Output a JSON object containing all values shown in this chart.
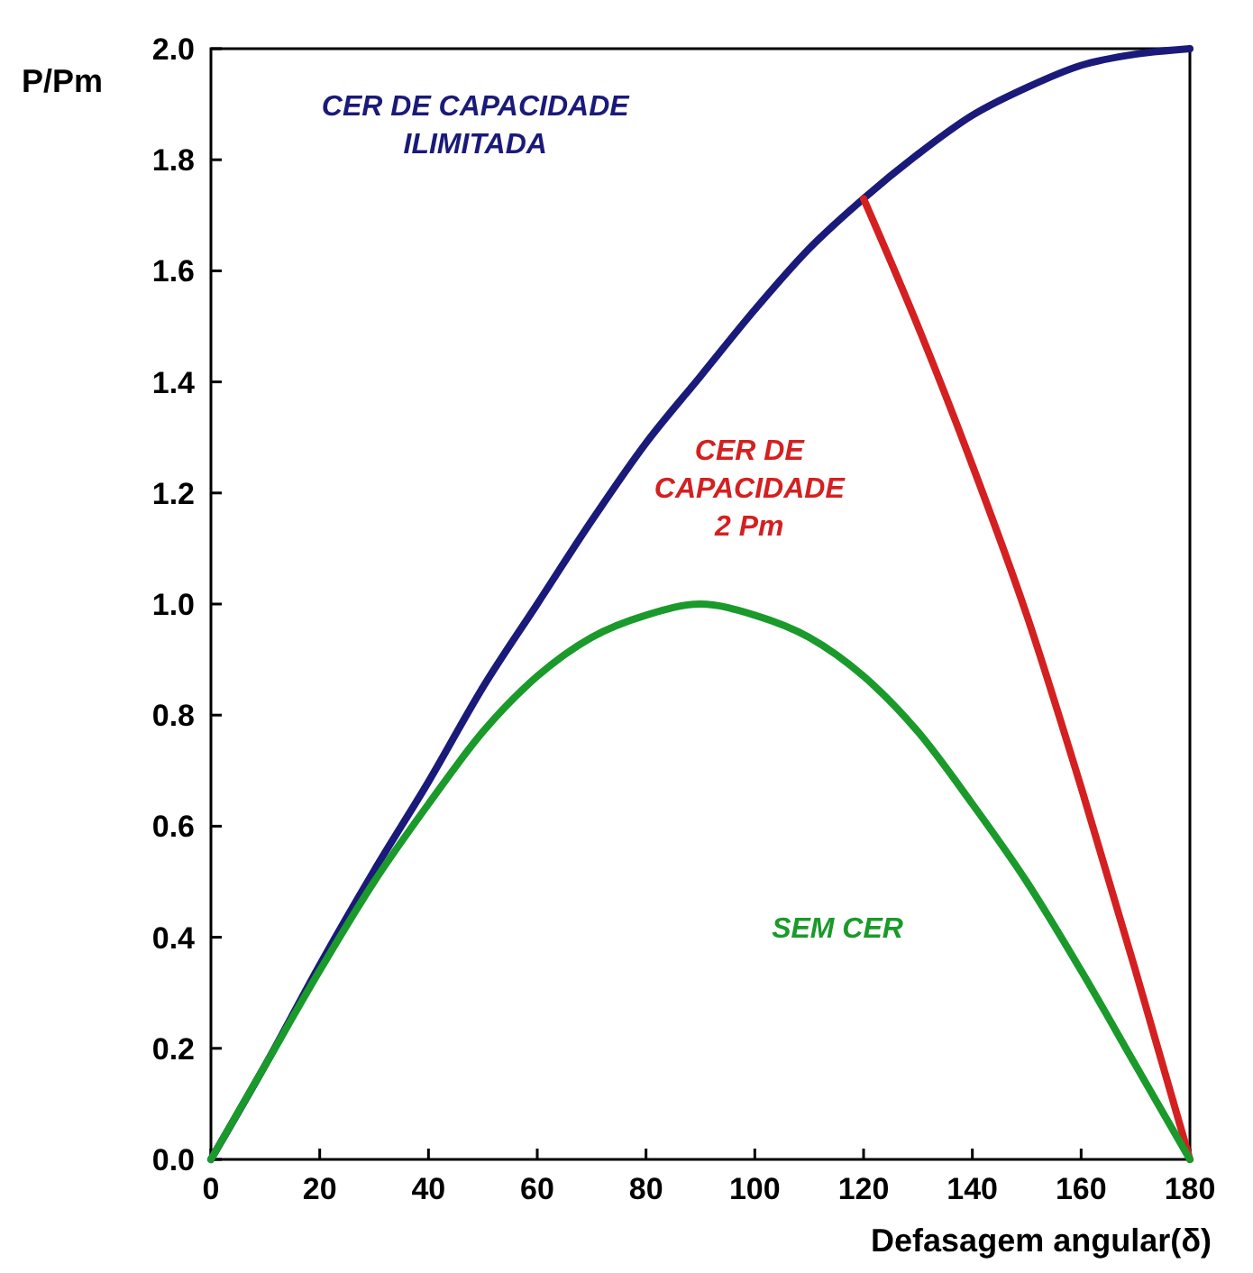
{
  "chart_data": {
    "type": "line",
    "xlabel": "Defasagem angular(δ)",
    "ylabel": "P/Pm",
    "xlim": [
      0,
      180
    ],
    "ylim": [
      0,
      2.0
    ],
    "xticks": [
      0,
      20,
      40,
      60,
      80,
      100,
      120,
      140,
      160,
      180
    ],
    "yticks": [
      {
        "value": 0,
        "label": "0.0"
      },
      0.2,
      0.4,
      0.6,
      0.8,
      {
        "value": 1,
        "label": "1.0"
      },
      1.2,
      1.4,
      1.6,
      1.8,
      {
        "value": 2,
        "label": "2.0"
      }
    ],
    "grid": false,
    "marker": "none",
    "line_style": "solid",
    "series": [
      {
        "name": "CER DE CAPACIDADE ILIMITADA",
        "color": "#1a1a7a",
        "x": [
          0,
          10,
          20,
          30,
          40,
          50,
          60,
          70,
          80,
          90,
          100,
          110,
          120,
          130,
          140,
          150,
          160,
          170,
          180
        ],
        "values": [
          0,
          0.17,
          0.35,
          0.52,
          0.68,
          0.85,
          1.0,
          1.15,
          1.29,
          1.41,
          1.53,
          1.64,
          1.73,
          1.81,
          1.88,
          1.93,
          1.97,
          1.99,
          2.0
        ]
      },
      {
        "name": "CER DE CAPACIDADE 2 Pm",
        "color": "#d42020",
        "x": [
          120,
          130,
          140,
          150,
          160,
          170,
          180
        ],
        "values": [
          1.73,
          1.5,
          1.25,
          0.98,
          0.67,
          0.34,
          0
        ]
      },
      {
        "name": "SEM CER",
        "color": "#1a9a2a",
        "x": [
          0,
          10,
          20,
          30,
          40,
          50,
          60,
          70,
          80,
          90,
          100,
          110,
          120,
          130,
          140,
          150,
          160,
          170,
          180
        ],
        "values": [
          0,
          0.17,
          0.34,
          0.5,
          0.64,
          0.77,
          0.87,
          0.94,
          0.98,
          1.0,
          0.98,
          0.94,
          0.87,
          0.77,
          0.64,
          0.5,
          0.34,
          0.17,
          0
        ]
      }
    ]
  }
}
